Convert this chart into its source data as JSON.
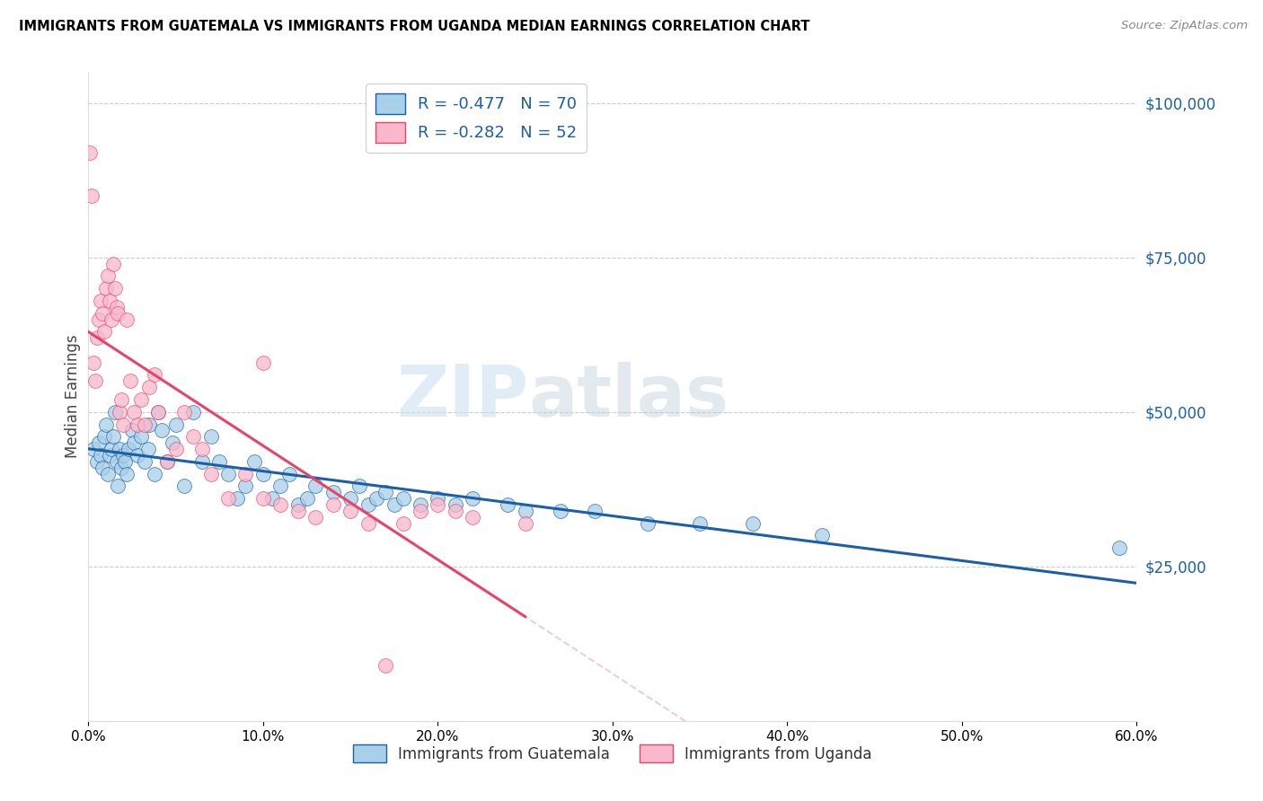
{
  "title": "IMMIGRANTS FROM GUATEMALA VS IMMIGRANTS FROM UGANDA MEDIAN EARNINGS CORRELATION CHART",
  "source": "Source: ZipAtlas.com",
  "ylabel": "Median Earnings",
  "color_guatemala": "#a8d0e8",
  "color_uganda": "#f9b8cc",
  "line_color_guatemala": "#1a5fa8",
  "line_color_uganda": "#e8436a",
  "line_color_uganda_dashed": "#d4a0b0",
  "guatemala_r": -0.477,
  "guatemala_n": 70,
  "uganda_r": -0.282,
  "uganda_n": 52,
  "xlim": [
    0.0,
    0.6
  ],
  "ylim": [
    0,
    105000
  ],
  "yticks": [
    0,
    25000,
    50000,
    75000,
    100000
  ],
  "xticks": [
    0.0,
    0.1,
    0.2,
    0.3,
    0.4,
    0.5,
    0.6
  ],
  "watermark_zip": "ZIP",
  "watermark_atlas": "atlas",
  "guatemala_x": [
    0.003,
    0.005,
    0.006,
    0.007,
    0.008,
    0.009,
    0.01,
    0.011,
    0.012,
    0.013,
    0.014,
    0.015,
    0.016,
    0.017,
    0.018,
    0.019,
    0.02,
    0.021,
    0.022,
    0.023,
    0.025,
    0.026,
    0.028,
    0.03,
    0.032,
    0.034,
    0.035,
    0.038,
    0.04,
    0.042,
    0.045,
    0.048,
    0.05,
    0.055,
    0.06,
    0.065,
    0.07,
    0.075,
    0.08,
    0.085,
    0.09,
    0.095,
    0.1,
    0.105,
    0.11,
    0.115,
    0.12,
    0.125,
    0.13,
    0.14,
    0.15,
    0.155,
    0.16,
    0.165,
    0.17,
    0.175,
    0.18,
    0.19,
    0.2,
    0.21,
    0.22,
    0.24,
    0.25,
    0.27,
    0.29,
    0.32,
    0.35,
    0.38,
    0.42,
    0.59
  ],
  "guatemala_y": [
    44000,
    42000,
    45000,
    43000,
    41000,
    46000,
    48000,
    40000,
    43000,
    44000,
    46000,
    50000,
    42000,
    38000,
    44000,
    41000,
    43000,
    42000,
    40000,
    44000,
    47000,
    45000,
    43000,
    46000,
    42000,
    44000,
    48000,
    40000,
    50000,
    47000,
    42000,
    45000,
    48000,
    38000,
    50000,
    42000,
    46000,
    42000,
    40000,
    36000,
    38000,
    42000,
    40000,
    36000,
    38000,
    40000,
    35000,
    36000,
    38000,
    37000,
    36000,
    38000,
    35000,
    36000,
    37000,
    35000,
    36000,
    35000,
    36000,
    35000,
    36000,
    35000,
    34000,
    34000,
    34000,
    32000,
    32000,
    32000,
    30000,
    28000
  ],
  "uganda_x": [
    0.001,
    0.002,
    0.003,
    0.004,
    0.005,
    0.006,
    0.007,
    0.008,
    0.009,
    0.01,
    0.011,
    0.012,
    0.013,
    0.014,
    0.015,
    0.016,
    0.017,
    0.018,
    0.019,
    0.02,
    0.022,
    0.024,
    0.026,
    0.028,
    0.03,
    0.032,
    0.035,
    0.038,
    0.04,
    0.045,
    0.05,
    0.055,
    0.06,
    0.065,
    0.07,
    0.08,
    0.09,
    0.1,
    0.11,
    0.12,
    0.13,
    0.14,
    0.15,
    0.16,
    0.17,
    0.18,
    0.19,
    0.2,
    0.21,
    0.22,
    0.25,
    0.1
  ],
  "uganda_y": [
    92000,
    85000,
    58000,
    55000,
    62000,
    65000,
    68000,
    66000,
    63000,
    70000,
    72000,
    68000,
    65000,
    74000,
    70000,
    67000,
    66000,
    50000,
    52000,
    48000,
    65000,
    55000,
    50000,
    48000,
    52000,
    48000,
    54000,
    56000,
    50000,
    42000,
    44000,
    50000,
    46000,
    44000,
    40000,
    36000,
    40000,
    36000,
    35000,
    34000,
    33000,
    35000,
    34000,
    32000,
    9000,
    32000,
    34000,
    35000,
    34000,
    33000,
    32000,
    58000
  ]
}
